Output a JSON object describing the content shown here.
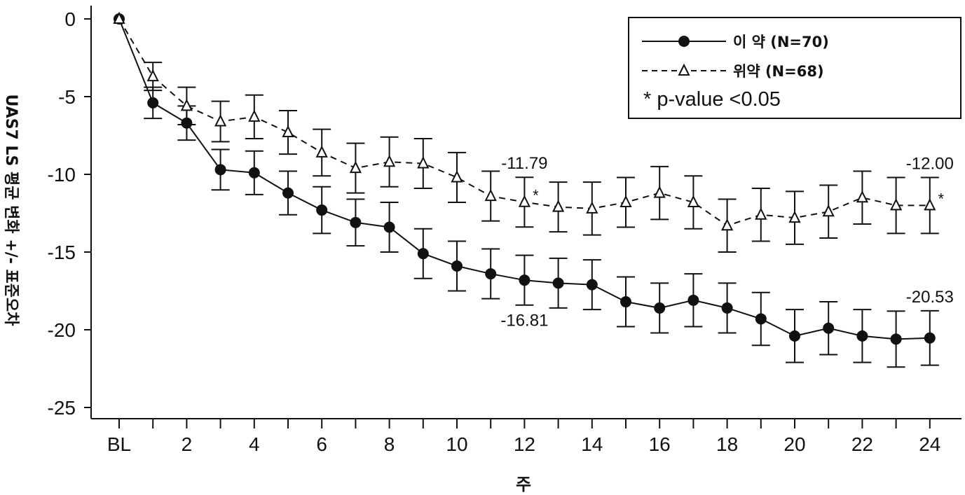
{
  "chart_data": {
    "type": "line",
    "xlabel": "주",
    "ylabel": "UAS7 LS 평균 변화 +/- 표준오차",
    "ylim": [
      -25,
      0
    ],
    "yticks": [
      0,
      -5,
      -10,
      -15,
      -20,
      -25
    ],
    "x": [
      0,
      1,
      2,
      3,
      4,
      5,
      6,
      7,
      8,
      9,
      10,
      11,
      12,
      13,
      14,
      15,
      16,
      17,
      18,
      19,
      20,
      21,
      22,
      23,
      24
    ],
    "xtick_values": [
      0,
      2,
      4,
      6,
      8,
      10,
      12,
      14,
      16,
      18,
      20,
      22,
      24
    ],
    "xtick_labels": [
      "BL",
      "2",
      "4",
      "6",
      "8",
      "10",
      "12",
      "14",
      "16",
      "18",
      "20",
      "22",
      "24"
    ],
    "series": [
      {
        "name": "이 약  (N=70)",
        "marker": "filled-circle",
        "line": "solid",
        "color": "#111111",
        "values": [
          0,
          -5.4,
          -6.7,
          -9.7,
          -9.9,
          -11.2,
          -12.3,
          -13.1,
          -13.4,
          -15.1,
          -15.9,
          -16.4,
          -16.81,
          -17.0,
          -17.1,
          -18.2,
          -18.6,
          -18.1,
          -18.6,
          -19.3,
          -20.4,
          -19.9,
          -20.4,
          -20.6,
          -20.53
        ],
        "error": [
          0,
          1.0,
          1.1,
          1.3,
          1.4,
          1.4,
          1.5,
          1.5,
          1.6,
          1.6,
          1.6,
          1.6,
          1.6,
          1.6,
          1.6,
          1.6,
          1.6,
          1.7,
          1.6,
          1.7,
          1.7,
          1.7,
          1.7,
          1.8,
          1.75
        ]
      },
      {
        "name": "위약 (N=68)",
        "marker": "open-triangle",
        "line": "dashed",
        "color": "#111111",
        "values": [
          0,
          -3.7,
          -5.6,
          -6.6,
          -6.3,
          -7.3,
          -8.6,
          -9.6,
          -9.2,
          -9.3,
          -10.2,
          -11.4,
          -11.79,
          -12.1,
          -12.2,
          -11.8,
          -11.2,
          -11.8,
          -13.3,
          -12.6,
          -12.8,
          -12.4,
          -11.5,
          -12.0,
          -12.0
        ],
        "error": [
          0,
          0.9,
          1.2,
          1.3,
          1.4,
          1.4,
          1.5,
          1.6,
          1.6,
          1.6,
          1.6,
          1.6,
          1.6,
          1.6,
          1.7,
          1.6,
          1.7,
          1.7,
          1.7,
          1.7,
          1.7,
          1.7,
          1.7,
          1.8,
          1.8
        ]
      }
    ],
    "annotations": [
      {
        "text": "-11.79",
        "x": 12,
        "series": 1,
        "position": "above"
      },
      {
        "text": "-16.81",
        "x": 12,
        "series": 0,
        "position": "below"
      },
      {
        "text": "-12.00",
        "x": 24,
        "series": 1,
        "position": "above"
      },
      {
        "text": "-20.53",
        "x": 24,
        "series": 0,
        "position": "above"
      },
      {
        "text": "*",
        "x": 12,
        "series": 1,
        "position": "right"
      },
      {
        "text": "*",
        "x": 24,
        "series": 1,
        "position": "right"
      }
    ],
    "legend": {
      "position": "top-right",
      "note": "* p-value <0.05"
    },
    "grid": false
  }
}
